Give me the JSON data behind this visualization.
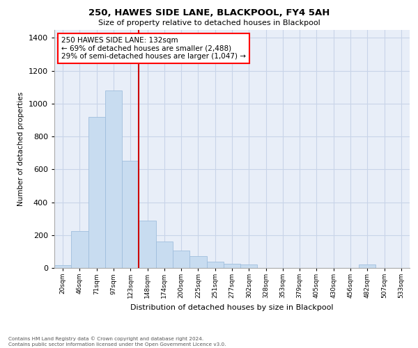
{
  "title": "250, HAWES SIDE LANE, BLACKPOOL, FY4 5AH",
  "subtitle": "Size of property relative to detached houses in Blackpool",
  "xlabel": "Distribution of detached houses by size in Blackpool",
  "ylabel": "Number of detached properties",
  "categories": [
    "20sqm",
    "46sqm",
    "71sqm",
    "97sqm",
    "123sqm",
    "148sqm",
    "174sqm",
    "200sqm",
    "225sqm",
    "251sqm",
    "277sqm",
    "302sqm",
    "328sqm",
    "353sqm",
    "379sqm",
    "405sqm",
    "430sqm",
    "456sqm",
    "482sqm",
    "507sqm",
    "533sqm"
  ],
  "values": [
    15,
    225,
    920,
    1080,
    650,
    290,
    160,
    105,
    70,
    40,
    25,
    20,
    0,
    0,
    0,
    0,
    0,
    0,
    20,
    0,
    0
  ],
  "bar_color": "#c8dcf0",
  "bar_edge_color": "#a0bedd",
  "grid_color": "#c8d4e8",
  "axes_bg_color": "#e8eef8",
  "vline_color": "#cc0000",
  "vline_position": 4.5,
  "annotation_text": "250 HAWES SIDE LANE: 132sqm\n← 69% of detached houses are smaller (2,488)\n29% of semi-detached houses are larger (1,047) →",
  "ylim": [
    0,
    1450
  ],
  "yticks": [
    0,
    200,
    400,
    600,
    800,
    1000,
    1200,
    1400
  ],
  "footer_line1": "Contains HM Land Registry data © Crown copyright and database right 2024.",
  "footer_line2": "Contains public sector information licensed under the Open Government Licence v3.0."
}
